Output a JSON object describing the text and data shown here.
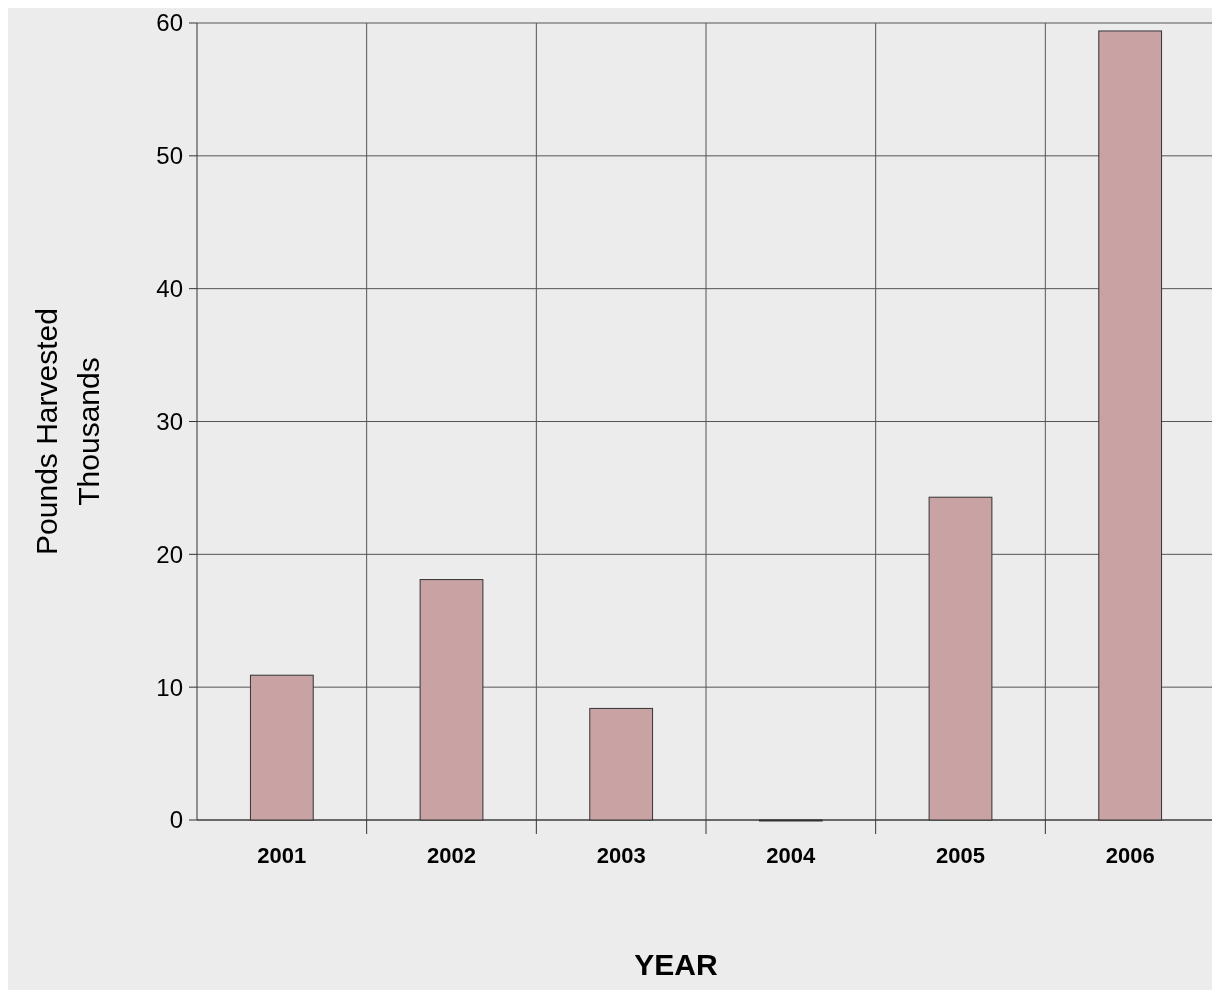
{
  "chart_data": {
    "type": "bar",
    "xlabel": "YEAR",
    "ylabel": "Pounds Harvested\nThousands",
    "categories": [
      "2001",
      "2002",
      "2003",
      "2004",
      "2005",
      "2006"
    ],
    "values": [
      10.9,
      18.1,
      8.4,
      0,
      24.3,
      59.4
    ],
    "color": "#c9a3a3",
    "ylim": [
      0,
      60
    ],
    "yticks": [
      0,
      10,
      20,
      30,
      40,
      50,
      60
    ],
    "grid": true
  }
}
